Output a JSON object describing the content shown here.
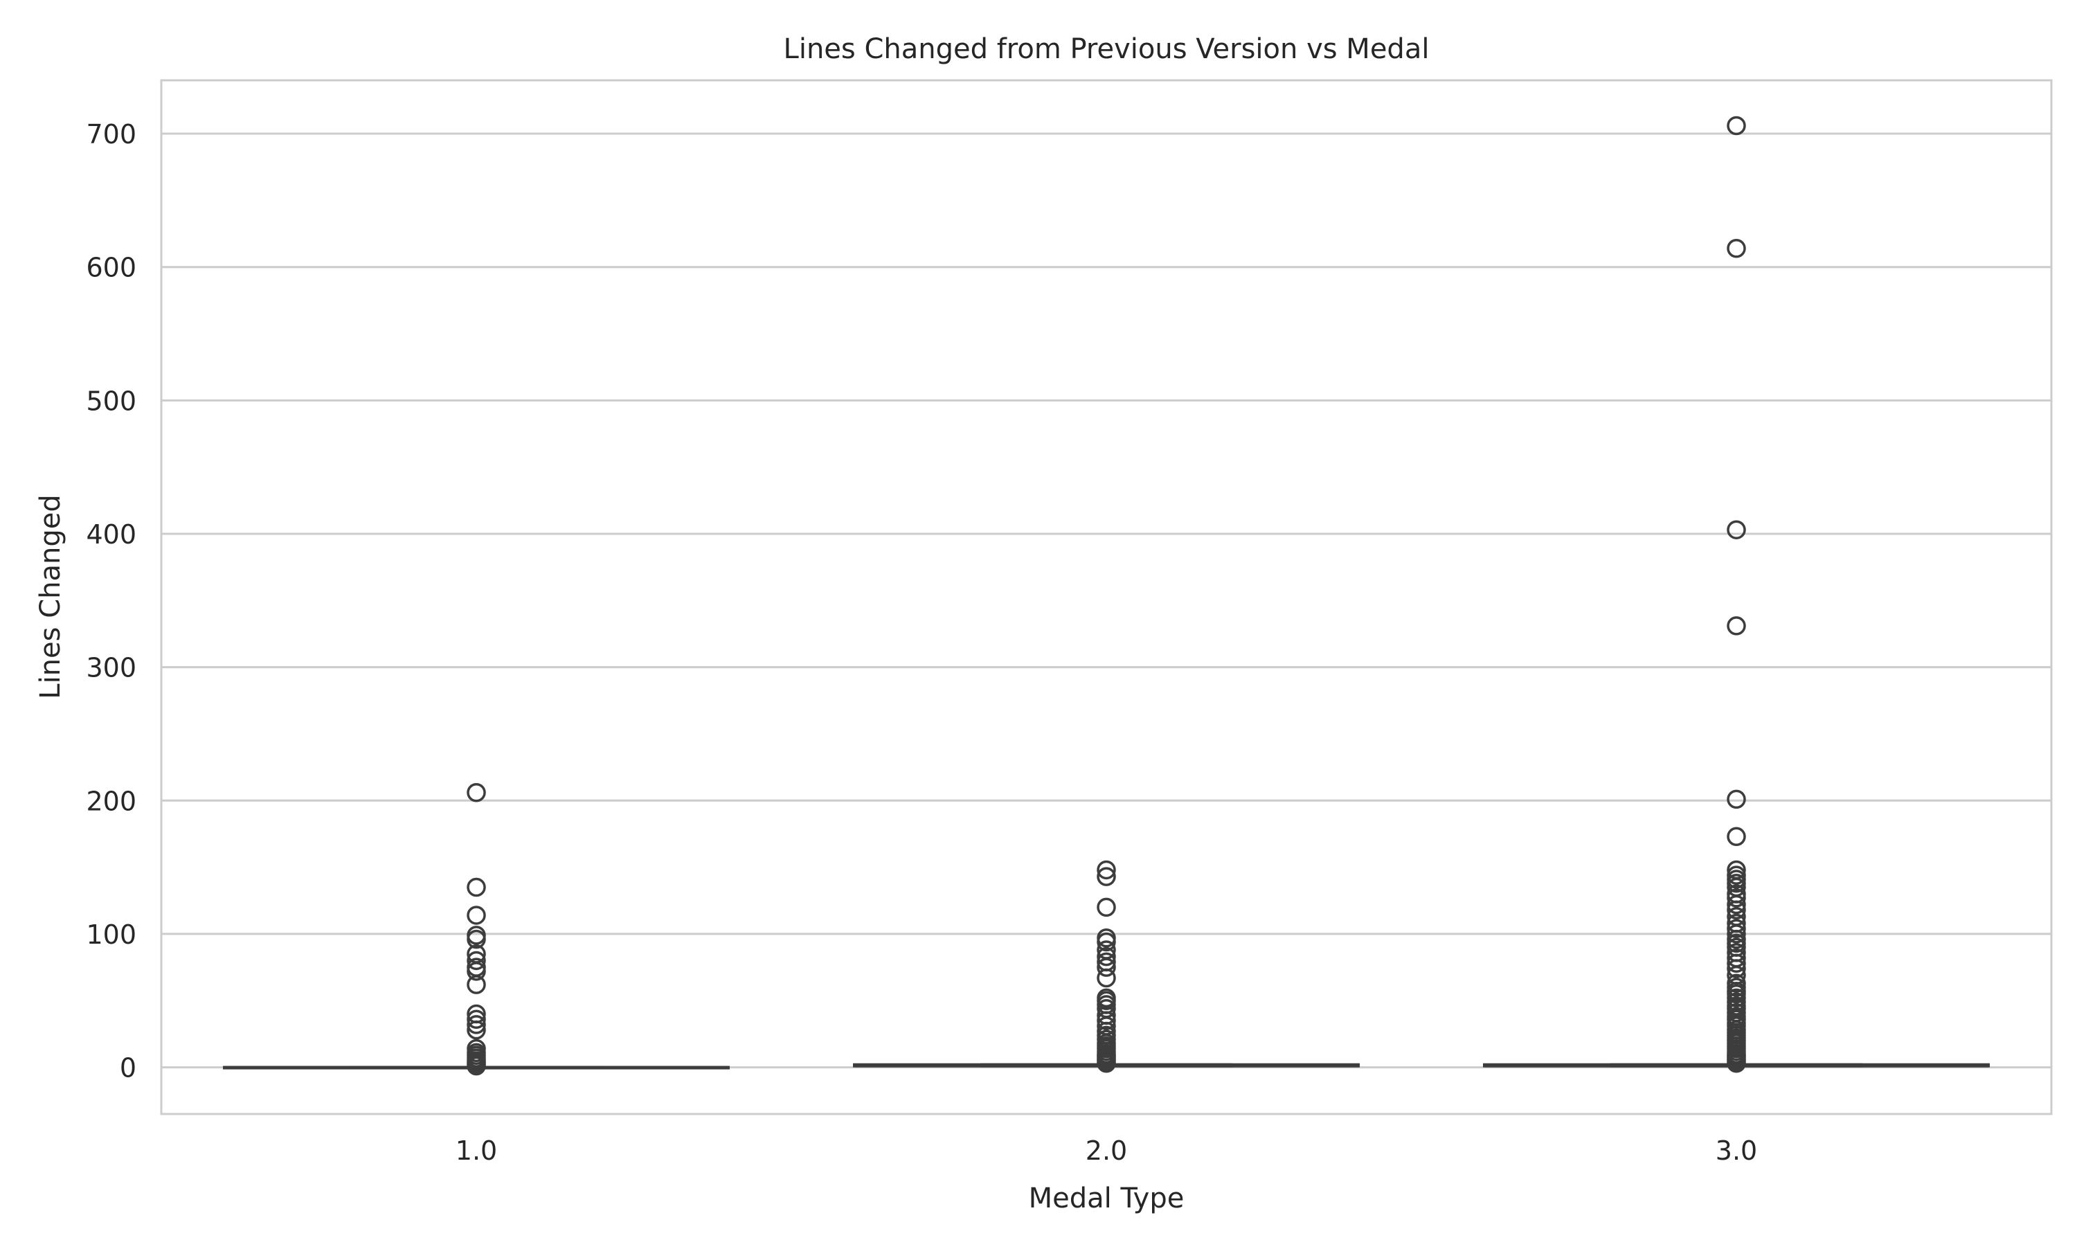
{
  "chart_data": {
    "type": "box",
    "title": "Lines Changed from Previous Version vs Medal",
    "xlabel": "Medal Type",
    "ylabel": "Lines Changed",
    "categories": [
      "1.0",
      "2.0",
      "3.0"
    ],
    "ylim": [
      -35,
      740
    ],
    "yticks": [
      0,
      100,
      200,
      300,
      400,
      500,
      600,
      700
    ],
    "grid": "horizontal",
    "colors": {
      "box_edge": "#3d3d3d",
      "grid": "#cccccc",
      "spine": "#cccccc",
      "text": "#262626"
    },
    "boxes": [
      {
        "category": "1.0",
        "min": 0,
        "q1": 0,
        "median": 0,
        "q3": 0,
        "max": 0,
        "outliers": [
          206,
          135,
          114,
          99,
          96,
          85,
          80,
          75,
          72,
          62,
          40,
          36,
          32,
          28,
          14,
          11,
          9,
          7,
          5,
          4,
          3,
          2,
          1
        ]
      },
      {
        "category": "2.0",
        "min": 1,
        "q1": 1,
        "median": 1,
        "q3": 2,
        "max": 2,
        "outliers": [
          148,
          143,
          120,
          97,
          94,
          88,
          83,
          79,
          75,
          67,
          52,
          50,
          47,
          44,
          39,
          35,
          31,
          27,
          24,
          21,
          18,
          16,
          14,
          12,
          10,
          9,
          8,
          7,
          6,
          5,
          4,
          3
        ]
      },
      {
        "category": "3.0",
        "min": 1,
        "q1": 1,
        "median": 1,
        "q3": 2,
        "max": 2,
        "outliers": [
          706,
          614,
          403,
          331,
          201,
          173,
          148,
          144,
          141,
          138,
          135,
          130,
          127,
          122,
          118,
          113,
          108,
          104,
          100,
          96,
          93,
          90,
          86,
          82,
          78,
          74,
          69,
          63,
          60,
          57,
          55,
          52,
          49,
          46,
          44,
          41,
          38,
          36,
          33,
          31,
          28,
          26,
          24,
          22,
          20,
          18,
          16,
          14,
          12,
          10,
          9,
          8,
          7,
          6,
          5,
          4,
          3
        ]
      }
    ]
  }
}
